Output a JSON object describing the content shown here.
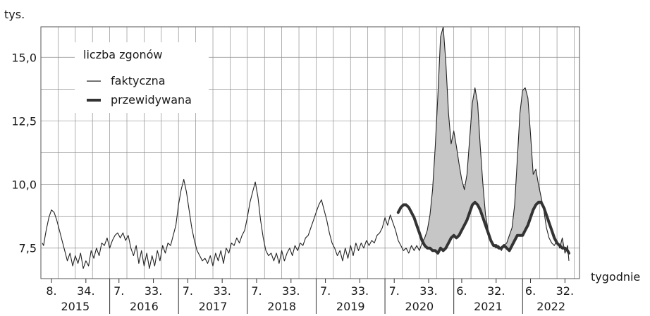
{
  "chart_data": {
    "type": "area",
    "y_unit_label": "tys.",
    "x_axis_label": "tygodnie",
    "ylim": [
      6.3,
      16.2
    ],
    "yticks": [
      "7,5",
      "10,0",
      "12,5",
      "15,0"
    ],
    "ytick_values": [
      7.5,
      10.0,
      12.5,
      15.0
    ],
    "grid": true,
    "legend": {
      "title": "liczba zgonów",
      "placement": "top-left",
      "entries": [
        "faktyczna",
        "przewidywana"
      ]
    },
    "year_labels": [
      "2015",
      "2016",
      "2017",
      "2018",
      "2019",
      "2020",
      "2021",
      "2022"
    ],
    "week_labels": [
      [
        "8.",
        "34."
      ],
      [
        "7.",
        "33."
      ],
      [
        "7.",
        "33."
      ],
      [
        "7.",
        "33."
      ],
      [
        "7.",
        "33."
      ],
      [
        "7.",
        "33."
      ],
      [
        "6.",
        "32."
      ],
      [
        "6.",
        "32."
      ]
    ],
    "week_label_positions": [
      [
        8,
        34
      ],
      [
        59,
        85
      ],
      [
        111,
        137
      ],
      [
        163,
        189
      ],
      [
        215,
        241
      ],
      [
        267,
        293
      ],
      [
        318,
        344
      ],
      [
        370,
        396
      ]
    ],
    "xlim": [
      0,
      407
    ],
    "series": [
      {
        "name": "faktyczna",
        "points": [
          [
            1,
            7.7
          ],
          [
            2,
            7.6
          ],
          [
            3,
            7.9
          ],
          [
            4,
            8.2
          ],
          [
            6,
            8.7
          ],
          [
            8,
            9.0
          ],
          [
            10,
            8.9
          ],
          [
            12,
            8.6
          ],
          [
            14,
            8.2
          ],
          [
            16,
            7.8
          ],
          [
            18,
            7.4
          ],
          [
            20,
            7.0
          ],
          [
            22,
            7.3
          ],
          [
            24,
            6.8
          ],
          [
            26,
            7.2
          ],
          [
            28,
            6.9
          ],
          [
            30,
            7.3
          ],
          [
            32,
            6.7
          ],
          [
            34,
            7.0
          ],
          [
            36,
            6.8
          ],
          [
            38,
            7.4
          ],
          [
            40,
            7.1
          ],
          [
            42,
            7.5
          ],
          [
            44,
            7.2
          ],
          [
            46,
            7.7
          ],
          [
            48,
            7.6
          ],
          [
            50,
            7.9
          ],
          [
            52,
            7.5
          ],
          [
            54,
            7.8
          ],
          [
            56,
            8.0
          ],
          [
            58,
            8.1
          ],
          [
            60,
            7.9
          ],
          [
            62,
            8.1
          ],
          [
            64,
            7.8
          ],
          [
            66,
            8.0
          ],
          [
            68,
            7.5
          ],
          [
            70,
            7.2
          ],
          [
            72,
            7.6
          ],
          [
            74,
            6.9
          ],
          [
            76,
            7.4
          ],
          [
            78,
            6.8
          ],
          [
            80,
            7.3
          ],
          [
            82,
            6.7
          ],
          [
            84,
            7.2
          ],
          [
            86,
            6.8
          ],
          [
            88,
            7.4
          ],
          [
            90,
            7.0
          ],
          [
            92,
            7.6
          ],
          [
            94,
            7.3
          ],
          [
            96,
            7.7
          ],
          [
            98,
            7.6
          ],
          [
            100,
            8.0
          ],
          [
            102,
            8.4
          ],
          [
            104,
            9.2
          ],
          [
            106,
            9.8
          ],
          [
            108,
            10.2
          ],
          [
            110,
            9.7
          ],
          [
            112,
            9.0
          ],
          [
            114,
            8.3
          ],
          [
            116,
            7.8
          ],
          [
            118,
            7.4
          ],
          [
            120,
            7.2
          ],
          [
            122,
            7.0
          ],
          [
            124,
            7.1
          ],
          [
            126,
            6.9
          ],
          [
            128,
            7.2
          ],
          [
            130,
            6.8
          ],
          [
            132,
            7.3
          ],
          [
            134,
            7.0
          ],
          [
            136,
            7.4
          ],
          [
            138,
            6.9
          ],
          [
            140,
            7.5
          ],
          [
            142,
            7.3
          ],
          [
            144,
            7.7
          ],
          [
            146,
            7.6
          ],
          [
            148,
            7.9
          ],
          [
            150,
            7.7
          ],
          [
            152,
            8.0
          ],
          [
            154,
            8.2
          ],
          [
            156,
            8.7
          ],
          [
            158,
            9.3
          ],
          [
            160,
            9.7
          ],
          [
            162,
            10.1
          ],
          [
            164,
            9.5
          ],
          [
            166,
            8.6
          ],
          [
            168,
            7.9
          ],
          [
            170,
            7.4
          ],
          [
            172,
            7.2
          ],
          [
            174,
            7.3
          ],
          [
            176,
            7.0
          ],
          [
            178,
            7.3
          ],
          [
            180,
            6.9
          ],
          [
            182,
            7.4
          ],
          [
            184,
            7.0
          ],
          [
            186,
            7.3
          ],
          [
            188,
            7.5
          ],
          [
            190,
            7.2
          ],
          [
            192,
            7.6
          ],
          [
            194,
            7.4
          ],
          [
            196,
            7.7
          ],
          [
            198,
            7.6
          ],
          [
            200,
            7.9
          ],
          [
            202,
            8.0
          ],
          [
            204,
            8.3
          ],
          [
            206,
            8.6
          ],
          [
            208,
            8.9
          ],
          [
            210,
            9.2
          ],
          [
            212,
            9.4
          ],
          [
            214,
            9.0
          ],
          [
            216,
            8.6
          ],
          [
            218,
            8.1
          ],
          [
            220,
            7.7
          ],
          [
            222,
            7.5
          ],
          [
            224,
            7.2
          ],
          [
            226,
            7.4
          ],
          [
            228,
            7.0
          ],
          [
            230,
            7.5
          ],
          [
            232,
            7.1
          ],
          [
            234,
            7.6
          ],
          [
            236,
            7.2
          ],
          [
            238,
            7.7
          ],
          [
            240,
            7.4
          ],
          [
            242,
            7.7
          ],
          [
            244,
            7.5
          ],
          [
            246,
            7.8
          ],
          [
            248,
            7.6
          ],
          [
            250,
            7.8
          ],
          [
            252,
            7.7
          ],
          [
            254,
            8.0
          ],
          [
            256,
            8.1
          ],
          [
            258,
            8.3
          ],
          [
            260,
            8.7
          ],
          [
            262,
            8.4
          ],
          [
            264,
            8.8
          ],
          [
            266,
            8.5
          ],
          [
            268,
            8.2
          ],
          [
            270,
            7.8
          ],
          [
            272,
            7.6
          ],
          [
            274,
            7.4
          ],
          [
            276,
            7.5
          ],
          [
            278,
            7.3
          ],
          [
            280,
            7.6
          ],
          [
            282,
            7.4
          ],
          [
            284,
            7.6
          ],
          [
            286,
            7.4
          ],
          [
            288,
            7.7
          ],
          [
            290,
            7.9
          ],
          [
            292,
            8.2
          ],
          [
            294,
            8.8
          ],
          [
            296,
            9.8
          ],
          [
            298,
            11.5
          ],
          [
            300,
            13.5
          ],
          [
            302,
            15.8
          ],
          [
            304,
            16.2
          ],
          [
            306,
            14.8
          ],
          [
            308,
            12.8
          ],
          [
            310,
            11.6
          ],
          [
            312,
            12.1
          ],
          [
            314,
            11.5
          ],
          [
            316,
            10.8
          ],
          [
            318,
            10.2
          ],
          [
            320,
            9.8
          ],
          [
            322,
            10.4
          ],
          [
            324,
            11.8
          ],
          [
            326,
            13.2
          ],
          [
            328,
            13.8
          ],
          [
            330,
            13.2
          ],
          [
            332,
            11.5
          ],
          [
            334,
            10.0
          ],
          [
            336,
            8.8
          ],
          [
            338,
            8.2
          ],
          [
            340,
            7.9
          ],
          [
            342,
            7.6
          ],
          [
            344,
            7.5
          ],
          [
            346,
            7.6
          ],
          [
            348,
            7.4
          ],
          [
            350,
            7.6
          ],
          [
            352,
            7.7
          ],
          [
            354,
            8.0
          ],
          [
            356,
            8.3
          ],
          [
            358,
            9.2
          ],
          [
            360,
            11.0
          ],
          [
            362,
            12.8
          ],
          [
            364,
            13.7
          ],
          [
            366,
            13.8
          ],
          [
            368,
            13.4
          ],
          [
            370,
            12.0
          ],
          [
            372,
            10.4
          ],
          [
            374,
            10.6
          ],
          [
            376,
            10.0
          ],
          [
            378,
            9.5
          ],
          [
            380,
            9.0
          ],
          [
            382,
            8.3
          ],
          [
            384,
            7.9
          ],
          [
            386,
            7.7
          ],
          [
            388,
            7.6
          ],
          [
            390,
            7.8
          ],
          [
            392,
            7.5
          ],
          [
            394,
            7.9
          ],
          [
            396,
            7.3
          ],
          [
            398,
            7.6
          ],
          [
            399,
            7.0
          ]
        ]
      },
      {
        "name": "przewidywana",
        "points": [
          [
            270,
            8.9
          ],
          [
            272,
            9.1
          ],
          [
            274,
            9.2
          ],
          [
            276,
            9.2
          ],
          [
            278,
            9.1
          ],
          [
            280,
            8.9
          ],
          [
            282,
            8.7
          ],
          [
            284,
            8.4
          ],
          [
            286,
            8.1
          ],
          [
            288,
            7.8
          ],
          [
            290,
            7.6
          ],
          [
            292,
            7.5
          ],
          [
            294,
            7.5
          ],
          [
            296,
            7.4
          ],
          [
            298,
            7.4
          ],
          [
            300,
            7.3
          ],
          [
            302,
            7.5
          ],
          [
            304,
            7.4
          ],
          [
            306,
            7.5
          ],
          [
            308,
            7.7
          ],
          [
            310,
            7.9
          ],
          [
            312,
            8.0
          ],
          [
            314,
            7.9
          ],
          [
            316,
            8.0
          ],
          [
            318,
            8.2
          ],
          [
            320,
            8.4
          ],
          [
            322,
            8.6
          ],
          [
            324,
            8.9
          ],
          [
            326,
            9.2
          ],
          [
            328,
            9.3
          ],
          [
            330,
            9.2
          ],
          [
            332,
            9.0
          ],
          [
            334,
            8.7
          ],
          [
            336,
            8.4
          ],
          [
            338,
            8.1
          ],
          [
            340,
            7.8
          ],
          [
            342,
            7.6
          ],
          [
            344,
            7.6
          ],
          [
            346,
            7.5
          ],
          [
            348,
            7.5
          ],
          [
            350,
            7.6
          ],
          [
            352,
            7.5
          ],
          [
            354,
            7.4
          ],
          [
            356,
            7.6
          ],
          [
            358,
            7.8
          ],
          [
            360,
            8.0
          ],
          [
            362,
            8.0
          ],
          [
            364,
            8.0
          ],
          [
            366,
            8.2
          ],
          [
            368,
            8.4
          ],
          [
            370,
            8.7
          ],
          [
            372,
            9.0
          ],
          [
            374,
            9.2
          ],
          [
            376,
            9.3
          ],
          [
            378,
            9.3
          ],
          [
            380,
            9.1
          ],
          [
            382,
            8.8
          ],
          [
            384,
            8.5
          ],
          [
            386,
            8.2
          ],
          [
            388,
            7.9
          ],
          [
            390,
            7.7
          ],
          [
            392,
            7.6
          ],
          [
            394,
            7.5
          ],
          [
            396,
            7.5
          ],
          [
            398,
            7.4
          ],
          [
            399,
            7.3
          ]
        ]
      }
    ],
    "colors": {
      "actual": "#222222",
      "predicted": "#333333",
      "fill": "#c6c6c6",
      "grid": "#909090"
    }
  }
}
